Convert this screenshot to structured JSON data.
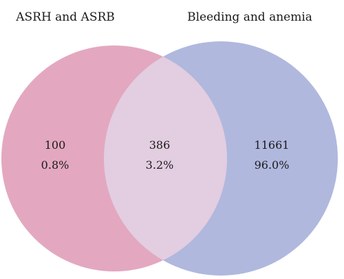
{
  "diagram": {
    "type": "venn",
    "sets": [
      {
        "id": "left",
        "label": "ASRH and ASRB",
        "color": "#e3a8bf"
      },
      {
        "id": "right",
        "label": "Bleeding and anemia",
        "color": "#b0b8de"
      }
    ],
    "overlap_color": "#e3cde0",
    "regions": {
      "left_only": {
        "count": "100",
        "percent": "0.8%"
      },
      "both": {
        "count": "386",
        "percent": "3.2%"
      },
      "right_only": {
        "count": "11661",
        "percent": "96.0%"
      }
    }
  }
}
